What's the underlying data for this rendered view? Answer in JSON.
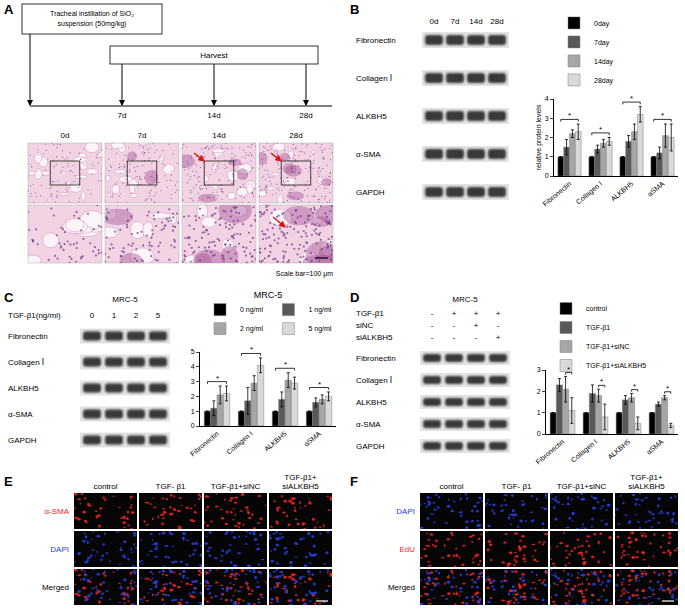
{
  "figure": {
    "A": {
      "letter": "A",
      "instillation": [
        "Tracheal instillation of SiO₂",
        "suspension (50mg/kg)"
      ],
      "harvest": "Harvest",
      "timepoints": [
        "7d",
        "14d",
        "28d"
      ],
      "histology_columns": [
        "0d",
        "7d",
        "14d",
        "28d"
      ],
      "scale_bar": "Scale bar=100 μm"
    },
    "B": {
      "letter": "B",
      "blot_columns": [
        "0d",
        "7d",
        "14d",
        "28d"
      ],
      "blot_rows": [
        "Fibronectin",
        "Collagen Ⅰ",
        "ALKBH5",
        "α-SMA",
        "GAPDH"
      ]
    },
    "C": {
      "letter": "C",
      "blot_title": "MRC-5",
      "condition": {
        "label": "TGF-β1(ng/ml)",
        "values": [
          0,
          1,
          2,
          5
        ]
      },
      "blot_rows": [
        "Fibronectin",
        "Collagen Ⅰ",
        "ALKBH5",
        "α-SMA",
        "GAPDH"
      ]
    },
    "D": {
      "letter": "D",
      "blot_title": "MRC-5",
      "conditions": [
        {
          "label": "TGF-β1",
          "values": [
            "-",
            "+",
            "+",
            "+"
          ]
        },
        {
          "label": "siNC",
          "values": [
            "-",
            "-",
            "+",
            "-"
          ]
        },
        {
          "label": "siALKBH5",
          "values": [
            "-",
            "-",
            "-",
            "+"
          ]
        }
      ],
      "blot_rows": [
        "Fibronectin",
        "Collagen Ⅰ",
        "ALKBH5",
        "α-SMA",
        "GAPDH"
      ]
    },
    "E": {
      "letter": "E",
      "columns": [
        "control",
        "TGF- β1",
        "TGF-β1+siNC",
        "TGF-β1+siALKBH5"
      ],
      "rows": [
        {
          "label": "α-SMA",
          "color": "#e8261e"
        },
        {
          "label": "DAPI",
          "color": "#2440e0"
        },
        {
          "label": "Merged",
          "color": "#000000"
        }
      ]
    },
    "F": {
      "letter": "F",
      "columns": [
        "control",
        "TGF- β1",
        "TGF-β1+siNC",
        "TGF-β1+siALKBH5"
      ],
      "rows": [
        {
          "label": "DAPI",
          "color": "#2440e0"
        },
        {
          "label": "EdU",
          "color": "#e8261e"
        },
        {
          "label": "Merged",
          "color": "#000000"
        }
      ]
    }
  },
  "chart_data": [
    {
      "type": "bar",
      "ylabel": "relative protein levels",
      "categories": [
        "Fibronectin",
        "Collagen I",
        "ALKBH5",
        "αSMA"
      ],
      "series": [
        {
          "name": "0day",
          "color": "#000000",
          "values": [
            1,
            1,
            1,
            1
          ],
          "errors": [
            0,
            0,
            0,
            0
          ]
        },
        {
          "name": "7day",
          "color": "#595959",
          "values": [
            1.5,
            1.4,
            1.8,
            1.2
          ],
          "errors": [
            0.4,
            0.2,
            0.3,
            0.3
          ]
        },
        {
          "name": "14day",
          "color": "#a6a6a6",
          "values": [
            2.2,
            1.7,
            2.3,
            2.1
          ],
          "errors": [
            0.2,
            0.2,
            0.4,
            0.6
          ]
        },
        {
          "name": "28day",
          "color": "#d9d9d9",
          "values": [
            2.3,
            1.8,
            3.2,
            2.0
          ],
          "errors": [
            0.4,
            0.2,
            0.4,
            0.7
          ]
        }
      ],
      "annotations": [
        {
          "category": "Fibronectin",
          "series": [
            "0day",
            "28day"
          ],
          "text": "*"
        },
        {
          "category": "Collagen I",
          "series": [
            "0day",
            "28day"
          ],
          "text": "*"
        },
        {
          "category": "ALKBH5",
          "series": [
            "0day",
            "28day"
          ],
          "text": "*"
        },
        {
          "category": "αSMA",
          "series": [
            "0day",
            "28day"
          ],
          "text": "*"
        }
      ],
      "ylim": [
        0,
        4
      ],
      "yticks": [
        0,
        1,
        2,
        3,
        4
      ],
      "grid": false,
      "legend": "top"
    },
    {
      "type": "bar",
      "title": "MRC-5",
      "categories": [
        "Fibronectin",
        "Collagen I",
        "ALKBH5",
        "αSMA"
      ],
      "series": [
        {
          "name": "0 ng/ml",
          "color": "#000000",
          "values": [
            1,
            1,
            1,
            1
          ],
          "errors": [
            0,
            0,
            0,
            0
          ]
        },
        {
          "name": "1 ng/ml",
          "color": "#595959",
          "values": [
            1.2,
            1.7,
            1.8,
            1.6
          ],
          "errors": [
            0.5,
            0.9,
            0.5,
            0.3
          ]
        },
        {
          "name": "2 ng/ml",
          "color": "#a6a6a6",
          "values": [
            2.1,
            2.9,
            3.1,
            1.8
          ],
          "errors": [
            0.6,
            0.5,
            0.5,
            0.3
          ]
        },
        {
          "name": "5 ng/ml",
          "color": "#d9d9d9",
          "values": [
            2.2,
            4.1,
            2.9,
            2.0
          ],
          "errors": [
            0.5,
            0.5,
            0.4,
            0.3
          ]
        }
      ],
      "annotations": [
        {
          "category": "Fibronectin",
          "series": [
            "0 ng/ml",
            "5 ng/ml"
          ],
          "text": "*"
        },
        {
          "category": "Collagen I",
          "series": [
            "0 ng/ml",
            "5 ng/ml"
          ],
          "text": "*"
        },
        {
          "category": "ALKBH5",
          "series": [
            "0 ng/ml",
            "5 ng/ml"
          ],
          "text": "*"
        },
        {
          "category": "αSMA",
          "series": [
            "0 ng/ml",
            "5 ng/ml"
          ],
          "text": "*"
        }
      ],
      "ylim": [
        0,
        5
      ],
      "yticks": [
        0,
        1,
        2,
        3,
        4,
        5
      ],
      "grid": false,
      "legend": "top"
    },
    {
      "type": "bar",
      "categories": [
        "Fibronectin",
        "Collagen I",
        "ALKBH5",
        "αSMA"
      ],
      "series": [
        {
          "name": "control",
          "color": "#000000",
          "values": [
            1,
            1,
            1,
            1
          ],
          "errors": [
            0,
            0,
            0,
            0
          ]
        },
        {
          "name": "TGF-β1",
          "color": "#595959",
          "values": [
            2.3,
            1.9,
            1.6,
            1.4
          ],
          "errors": [
            0.3,
            0.4,
            0.2,
            0.1
          ]
        },
        {
          "name": "TGF-β1+siNC",
          "color": "#a6a6a6",
          "values": [
            2.1,
            1.8,
            1.7,
            1.7
          ],
          "errors": [
            0.6,
            0.3,
            0.2,
            0.1
          ]
        },
        {
          "name": "TGF-β1+siALKBH5",
          "color": "#d9d9d9",
          "values": [
            1.1,
            0.8,
            0.5,
            0.4
          ],
          "errors": [
            0.6,
            0.6,
            0.3,
            0.1
          ]
        }
      ],
      "annotations": [
        {
          "category": "Fibronectin",
          "series": [
            "TGF-β1+siNC",
            "TGF-β1+siALKBH5"
          ],
          "text": "*"
        },
        {
          "category": "Collagen I",
          "series": [
            "TGF-β1+siNC",
            "TGF-β1+siALKBH5"
          ],
          "text": "*"
        },
        {
          "category": "ALKBH5",
          "series": [
            "TGF-β1+siNC",
            "TGF-β1+siALKBH5"
          ],
          "text": "*"
        },
        {
          "category": "αSMA",
          "series": [
            "TGF-β1+siNC",
            "TGF-β1+siALKBH5"
          ],
          "text": "*"
        }
      ],
      "ylim": [
        0,
        3
      ],
      "yticks": [
        0,
        1,
        2,
        3
      ],
      "grid": false,
      "legend": "top"
    }
  ]
}
